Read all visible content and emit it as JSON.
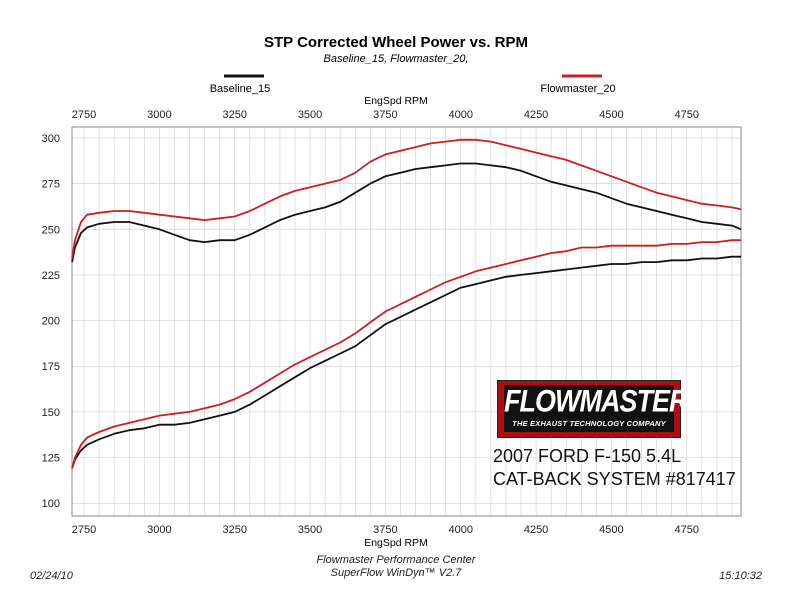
{
  "chart_data": {
    "type": "line",
    "title": "STP Corrected Wheel Power vs. RPM",
    "subtitle": "Baseline_15, Flowmaster_20,",
    "xlabel": "EngSpd  RPM",
    "ylabel": "",
    "xlim": [
      2710,
      4930
    ],
    "ylim": [
      93,
      306
    ],
    "x_ticks": [
      2750,
      3000,
      3250,
      3500,
      3750,
      4000,
      4250,
      4500,
      4750
    ],
    "y_ticks": [
      100,
      125,
      150,
      175,
      200,
      225,
      250,
      275,
      300
    ],
    "grid": true,
    "legend_placement": "top",
    "series": [
      {
        "name": "Baseline_15",
        "metric": "power",
        "color": "#111111",
        "x": [
          2710,
          2720,
          2740,
          2760,
          2800,
          2850,
          2900,
          2950,
          3000,
          3050,
          3100,
          3150,
          3200,
          3250,
          3300,
          3350,
          3400,
          3450,
          3500,
          3550,
          3600,
          3650,
          3700,
          3750,
          3800,
          3850,
          3900,
          3950,
          4000,
          4050,
          4100,
          4150,
          4200,
          4250,
          4300,
          4350,
          4400,
          4450,
          4500,
          4550,
          4600,
          4650,
          4700,
          4750,
          4800,
          4850,
          4900,
          4930
        ],
        "y": [
          232,
          240,
          248,
          251,
          253,
          254,
          254,
          252,
          250,
          247,
          244,
          243,
          244,
          244,
          247,
          251,
          255,
          258,
          260,
          262,
          265,
          270,
          275,
          279,
          281,
          283,
          284,
          285,
          286,
          286,
          285,
          284,
          282,
          279,
          276,
          274,
          272,
          270,
          267,
          264,
          262,
          260,
          258,
          256,
          254,
          253,
          252,
          250
        ]
      },
      {
        "name": "Flowmaster_20",
        "metric": "power",
        "color": "#cc1f1f",
        "x": [
          2710,
          2720,
          2740,
          2760,
          2800,
          2850,
          2900,
          2950,
          3000,
          3050,
          3100,
          3150,
          3200,
          3250,
          3300,
          3350,
          3400,
          3450,
          3500,
          3550,
          3600,
          3650,
          3700,
          3750,
          3800,
          3850,
          3900,
          3950,
          4000,
          4050,
          4100,
          4150,
          4200,
          4250,
          4300,
          4350,
          4400,
          4450,
          4500,
          4550,
          4600,
          4650,
          4700,
          4750,
          4800,
          4850,
          4900,
          4930
        ],
        "y": [
          234,
          244,
          254,
          258,
          259,
          260,
          260,
          259,
          258,
          257,
          256,
          255,
          256,
          257,
          260,
          264,
          268,
          271,
          273,
          275,
          277,
          281,
          287,
          291,
          293,
          295,
          297,
          298,
          299,
          299,
          298,
          296,
          294,
          292,
          290,
          288,
          285,
          282,
          279,
          276,
          273,
          270,
          268,
          266,
          264,
          263,
          262,
          261
        ]
      },
      {
        "name": "Baseline_15",
        "metric": "torque",
        "color": "#111111",
        "x": [
          2710,
          2720,
          2740,
          2760,
          2800,
          2850,
          2900,
          2950,
          3000,
          3050,
          3100,
          3150,
          3200,
          3250,
          3300,
          3350,
          3400,
          3450,
          3500,
          3550,
          3600,
          3650,
          3700,
          3750,
          3800,
          3850,
          3900,
          3950,
          4000,
          4050,
          4100,
          4150,
          4200,
          4250,
          4300,
          4350,
          4400,
          4450,
          4500,
          4550,
          4600,
          4650,
          4700,
          4750,
          4800,
          4850,
          4900,
          4930
        ],
        "y": [
          119,
          124,
          129,
          132,
          135,
          138,
          140,
          141,
          143,
          143,
          144,
          146,
          148,
          150,
          154,
          159,
          164,
          169,
          174,
          178,
          182,
          186,
          192,
          198,
          202,
          206,
          210,
          214,
          218,
          220,
          222,
          224,
          225,
          226,
          227,
          228,
          229,
          230,
          231,
          231,
          232,
          232,
          233,
          233,
          234,
          234,
          235,
          235
        ]
      },
      {
        "name": "Flowmaster_20",
        "metric": "torque",
        "color": "#cc1f1f",
        "x": [
          2710,
          2720,
          2740,
          2760,
          2800,
          2850,
          2900,
          2950,
          3000,
          3050,
          3100,
          3150,
          3200,
          3250,
          3300,
          3350,
          3400,
          3450,
          3500,
          3550,
          3600,
          3650,
          3700,
          3750,
          3800,
          3850,
          3900,
          3950,
          4000,
          4050,
          4100,
          4150,
          4200,
          4250,
          4300,
          4350,
          4400,
          4450,
          4500,
          4550,
          4600,
          4650,
          4700,
          4750,
          4800,
          4850,
          4900,
          4930
        ],
        "y": [
          119,
          125,
          132,
          136,
          139,
          142,
          144,
          146,
          148,
          149,
          150,
          152,
          154,
          157,
          161,
          166,
          171,
          176,
          180,
          184,
          188,
          193,
          199,
          205,
          209,
          213,
          217,
          221,
          224,
          227,
          229,
          231,
          233,
          235,
          237,
          238,
          240,
          240,
          241,
          241,
          241,
          241,
          242,
          242,
          243,
          243,
          244,
          244
        ]
      }
    ]
  },
  "legend": {
    "items": [
      {
        "label": "Baseline_15",
        "color": "#111111"
      },
      {
        "label": "Flowmaster_20",
        "color": "#cc1f1f"
      }
    ]
  },
  "logo": {
    "brand": "FLOWMASTER",
    "tm": "TM",
    "tagline": "THE EXHAUST TECHNOLOGY COMPANY"
  },
  "vehicle": {
    "line1": "2007 FORD F-150 5.4L",
    "line2": "CAT-BACK SYSTEM #817417"
  },
  "footer": {
    "center_line1": "Flowmaster Performance Center",
    "center_line2": "SuperFlow WinDyn™ V2.7",
    "date": "02/24/10",
    "time": "15:10:32"
  },
  "colors": {
    "grid": "#d4d4d4",
    "frame": "#888888",
    "logo_red": "#b00d12"
  }
}
